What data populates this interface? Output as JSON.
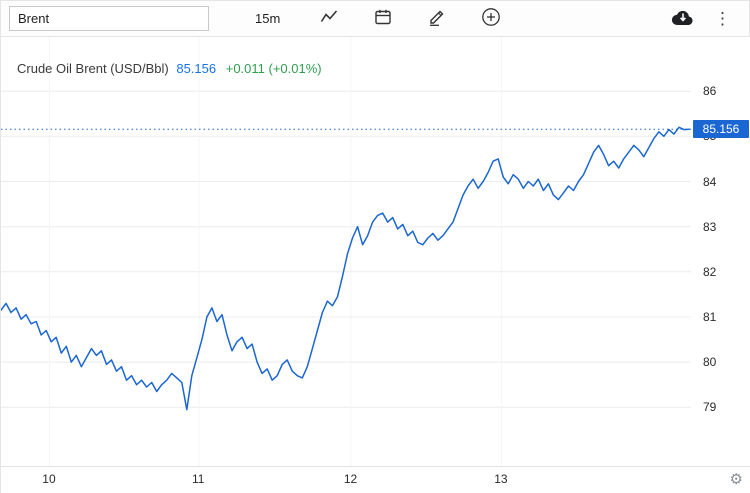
{
  "toolbar": {
    "symbol_value": "Brent",
    "interval_label": "15m"
  },
  "legend": {
    "title": "Crude Oil Brent (USD/Bbl)",
    "price": "85.156",
    "change": "+0.011 (+0.01%)"
  },
  "price_tag": "85.156",
  "colors": {
    "accent_blue": "#1a66d2",
    "legend_price_blue": "#1a73e8",
    "change_green": "#2e9e4e",
    "grid": "#ececec",
    "vgrid": "#f4f4f4"
  },
  "chart_data": {
    "type": "line",
    "title": "Crude Oil Brent (USD/Bbl)",
    "xlabel": "",
    "ylabel": "USD/Bbl",
    "x_ticks": [
      "10",
      "11",
      "12",
      "13"
    ],
    "x_tick_pos": [
      0.07,
      0.287,
      0.507,
      0.725
    ],
    "y_ticks": [
      86,
      85,
      84,
      83,
      82,
      81,
      80,
      79
    ],
    "ylim": [
      77.7,
      87.2
    ],
    "last_price": 85.156,
    "grid": true,
    "legend_position": "top-left",
    "series": [
      {
        "name": "Crude Oil Brent (USD/Bbl)",
        "values": [
          81.15,
          81.3,
          81.1,
          81.2,
          80.95,
          81.05,
          80.85,
          80.9,
          80.6,
          80.7,
          80.45,
          80.55,
          80.2,
          80.35,
          80.0,
          80.15,
          79.9,
          80.1,
          80.3,
          80.15,
          80.25,
          79.95,
          80.05,
          79.8,
          79.9,
          79.6,
          79.7,
          79.5,
          79.6,
          79.45,
          79.55,
          79.35,
          79.5,
          79.6,
          79.75,
          79.65,
          79.55,
          78.95,
          79.7,
          80.1,
          80.5,
          81.0,
          81.2,
          80.9,
          81.05,
          80.6,
          80.25,
          80.45,
          80.55,
          80.3,
          80.4,
          80.0,
          79.75,
          79.85,
          79.6,
          79.7,
          79.95,
          80.05,
          79.8,
          79.7,
          79.65,
          79.9,
          80.3,
          80.7,
          81.1,
          81.35,
          81.25,
          81.45,
          81.9,
          82.4,
          82.75,
          83.0,
          82.6,
          82.8,
          83.1,
          83.25,
          83.3,
          83.1,
          83.2,
          82.95,
          83.05,
          82.8,
          82.9,
          82.65,
          82.6,
          82.75,
          82.85,
          82.7,
          82.8,
          82.95,
          83.1,
          83.4,
          83.7,
          83.9,
          84.05,
          83.85,
          84.0,
          84.2,
          84.45,
          84.5,
          84.1,
          83.95,
          84.15,
          84.05,
          83.85,
          84.0,
          83.9,
          84.05,
          83.8,
          83.95,
          83.7,
          83.6,
          83.75,
          83.9,
          83.8,
          84.0,
          84.15,
          84.4,
          84.65,
          84.8,
          84.6,
          84.35,
          84.45,
          84.3,
          84.5,
          84.65,
          84.8,
          84.7,
          84.55,
          84.75,
          84.95,
          85.1,
          85.0,
          85.15,
          85.05,
          85.2,
          85.15,
          85.156
        ]
      }
    ]
  }
}
